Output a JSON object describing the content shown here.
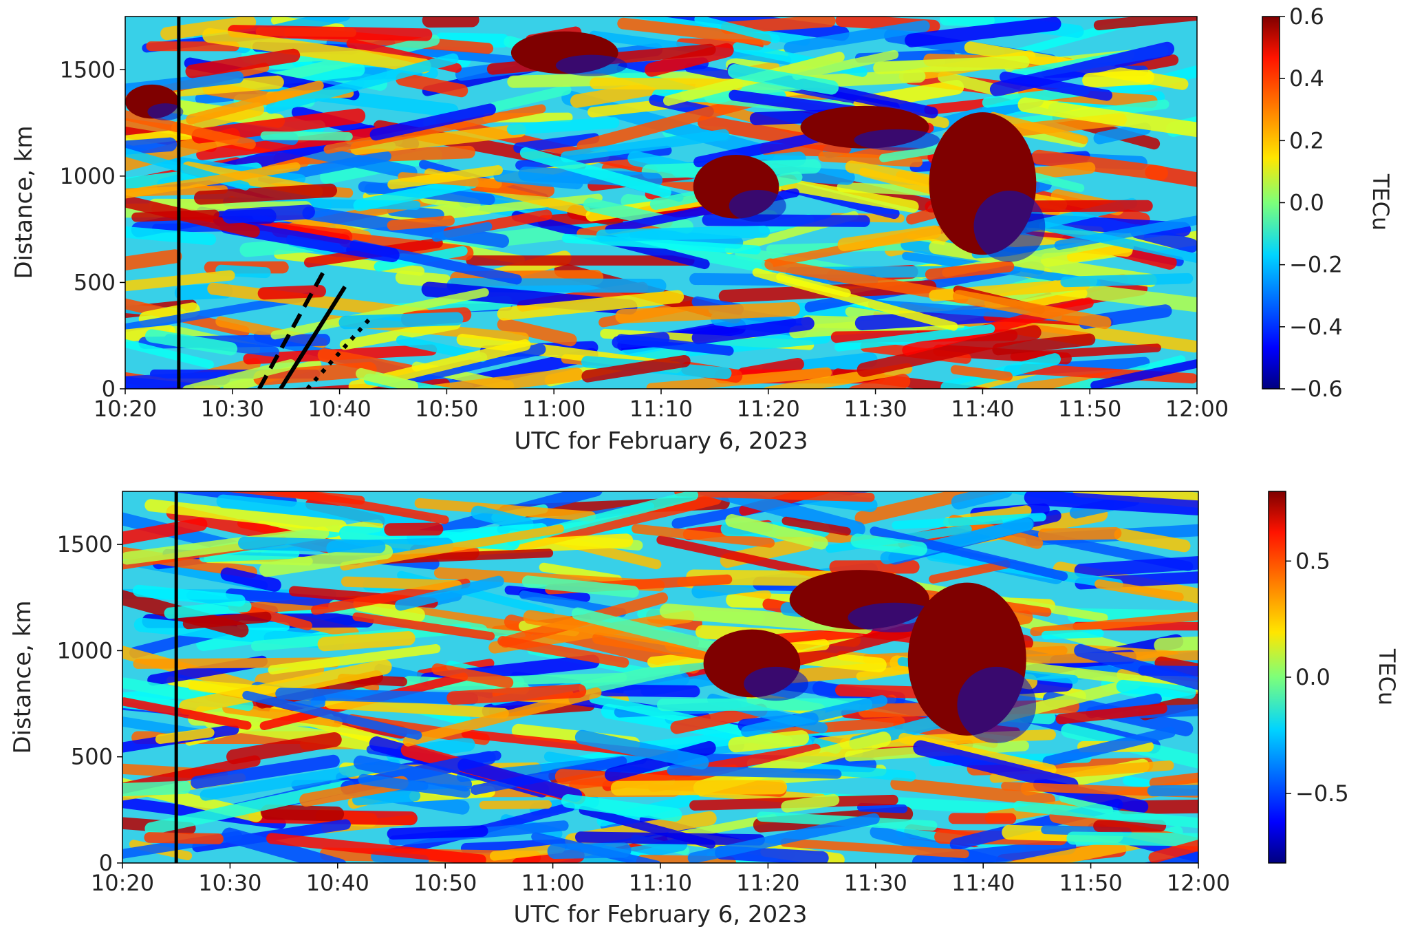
{
  "chart_data": [
    {
      "type": "scatter",
      "panel": "top",
      "xlabel": "UTC for February 6, 2023",
      "ylabel": "Distance, km",
      "xlim": [
        "10:20",
        "12:00"
      ],
      "ylim": [
        0,
        1750
      ],
      "xticks": [
        "10:20",
        "10:30",
        "10:40",
        "10:50",
        "11:00",
        "11:10",
        "11:20",
        "11:30",
        "11:40",
        "11:50",
        "12:00"
      ],
      "yticks": [
        "0",
        "500",
        "1000",
        "1500"
      ],
      "colorbar": {
        "label": "TECu",
        "colormap": "jet",
        "range": [
          -0.6,
          0.6
        ],
        "ticks": [
          "0.6",
          "0.4",
          "0.2",
          "0.0",
          "−0.2",
          "−0.4",
          "−0.6"
        ]
      },
      "vertical_line": {
        "x": "10:25"
      },
      "travel_lines": [
        {
          "style": "dashed",
          "from": {
            "x": "10:32.5",
            "y": 0
          },
          "to": {
            "x": "10:38.5",
            "y": 550
          }
        },
        {
          "style": "solid",
          "from": {
            "x": "10:34.5",
            "y": 0
          },
          "to": {
            "x": "10:40.5",
            "y": 480
          }
        },
        {
          "style": "dotted",
          "from": {
            "x": "10:37",
            "y": 0
          },
          "to": {
            "x": "10:43",
            "y": 340
          }
        }
      ],
      "saturated_regions": [
        {
          "x": [
            "10:20",
            "10:25"
          ],
          "y": [
            1270,
            1430
          ],
          "sign": "positive"
        },
        {
          "x": [
            "10:56",
            "11:06"
          ],
          "y": [
            1480,
            1680
          ],
          "sign": "positive"
        },
        {
          "x": [
            "11:13",
            "11:21"
          ],
          "y": [
            800,
            1100
          ],
          "sign": "positive"
        },
        {
          "x": [
            "11:23",
            "11:35"
          ],
          "y": [
            1130,
            1330
          ],
          "sign": "positive"
        },
        {
          "x": [
            "11:35",
            "11:45"
          ],
          "y": [
            630,
            1300
          ],
          "sign": "positive"
        }
      ]
    },
    {
      "type": "scatter",
      "panel": "bottom",
      "xlabel": "UTC for February 6, 2023",
      "ylabel": "Distance, km",
      "xlim": [
        "10:20",
        "12:00"
      ],
      "ylim": [
        0,
        1750
      ],
      "xticks": [
        "10:20",
        "10:30",
        "10:40",
        "10:50",
        "11:00",
        "11:10",
        "11:20",
        "11:30",
        "11:40",
        "11:50",
        "12:00"
      ],
      "yticks": [
        "0",
        "500",
        "1000",
        "1500"
      ],
      "colorbar": {
        "label": "TECu",
        "colormap": "jet",
        "range": [
          -0.8,
          0.8
        ],
        "ticks": [
          "0.5",
          "0.0",
          "−0.5"
        ]
      },
      "vertical_line": {
        "x": "10:25"
      },
      "saturated_regions": [
        {
          "x": [
            "11:14",
            "11:23"
          ],
          "y": [
            780,
            1100
          ],
          "sign": "positive"
        },
        {
          "x": [
            "11:22",
            "11:35"
          ],
          "y": [
            1100,
            1380
          ],
          "sign": "positive"
        },
        {
          "x": [
            "11:33",
            "11:44"
          ],
          "y": [
            600,
            1320
          ],
          "sign": "positive"
        }
      ]
    }
  ]
}
